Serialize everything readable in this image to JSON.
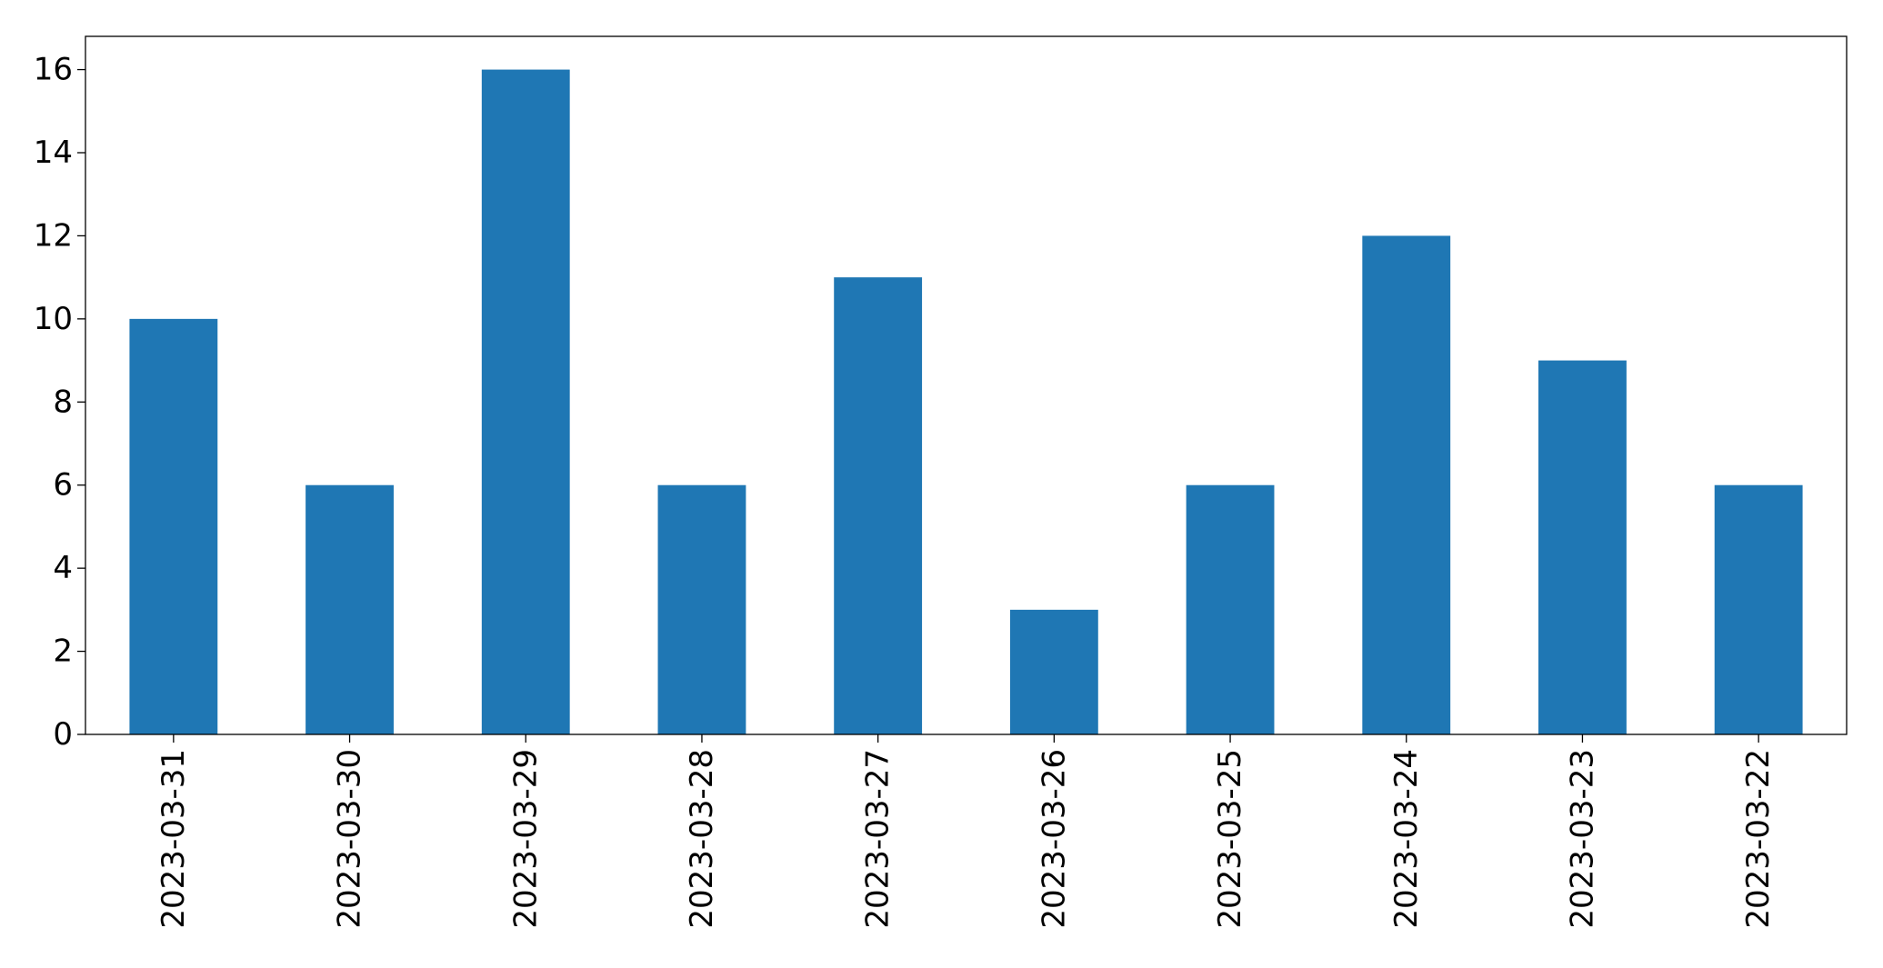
{
  "chart_data": {
    "type": "bar",
    "categories": [
      "2023-03-31",
      "2023-03-30",
      "2023-03-29",
      "2023-03-28",
      "2023-03-27",
      "2023-03-26",
      "2023-03-25",
      "2023-03-24",
      "2023-03-23",
      "2023-03-22"
    ],
    "values": [
      10,
      6,
      16,
      6,
      11,
      3,
      6,
      12,
      9,
      6
    ],
    "color": "#1f77b4",
    "ylim": [
      0,
      16.8
    ],
    "yticks": [
      0,
      2,
      4,
      6,
      8,
      10,
      12,
      14,
      16
    ],
    "grid": false
  }
}
